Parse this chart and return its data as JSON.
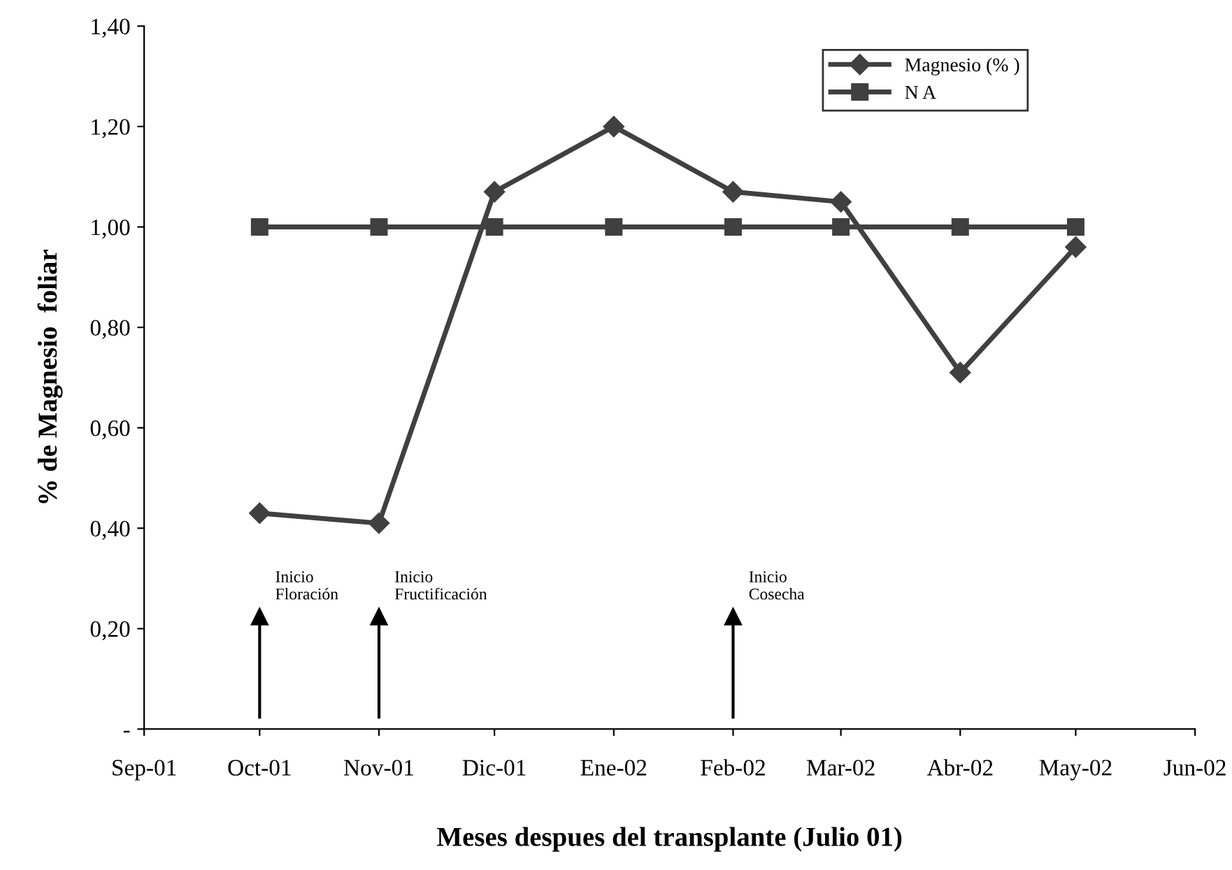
{
  "chart_data": {
    "type": "line",
    "xlabel": "Meses despues del transplante (Julio 01)",
    "ylabel": "% de Magnesio  foliar",
    "x": [
      "2001-10",
      "2001-11",
      "2001-12",
      "2002-01",
      "2002-02",
      "2002-03",
      "2002-04",
      "2002-05"
    ],
    "series": [
      {
        "name": "Magnesio (% )",
        "color": "#404040",
        "marker": "diamond",
        "values": [
          0.43,
          0.41,
          1.07,
          1.2,
          1.07,
          1.05,
          0.71,
          0.96
        ]
      },
      {
        "name": "N A",
        "color": "#404040",
        "marker": "square",
        "values": [
          1.0,
          1.0,
          1.0,
          1.0,
          1.0,
          1.0,
          1.0,
          1.0
        ]
      }
    ],
    "xlim": [
      "2001-09",
      "2002-06"
    ],
    "xticks": [
      {
        "value": "2001-09",
        "label": "Sep-01"
      },
      {
        "value": "2001-10",
        "label": "Oct-01"
      },
      {
        "value": "2001-11",
        "label": "Nov-01"
      },
      {
        "value": "2001-12",
        "label": "Dic-01"
      },
      {
        "value": "2002-01",
        "label": "Ene-02"
      },
      {
        "value": "2002-02",
        "label": "Feb-02"
      },
      {
        "value": "2002-03",
        "label": "Mar-02"
      },
      {
        "value": "2002-04",
        "label": "Abr-02"
      },
      {
        "value": "2002-05",
        "label": "May-02"
      },
      {
        "value": "2002-06",
        "label": "Jun-02"
      }
    ],
    "ylim": [
      0,
      1.4
    ],
    "yticks": [
      {
        "value": 0,
        "label": "-"
      },
      {
        "value": 0.2,
        "label": "0,20"
      },
      {
        "value": 0.4,
        "label": "0,40"
      },
      {
        "value": 0.6,
        "label": "0,60"
      },
      {
        "value": 0.8,
        "label": "0,80"
      },
      {
        "value": 1.0,
        "label": "1,00"
      },
      {
        "value": 1.2,
        "label": "1,20"
      },
      {
        "value": 1.4,
        "label": "1,40"
      }
    ],
    "ref_lines": [
      {
        "axis": "x",
        "value": "2001-10",
        "label": "Inicio\nFloración"
      },
      {
        "axis": "x",
        "value": "2001-11",
        "label": "Inicio\nFructificación"
      },
      {
        "axis": "x",
        "value": "2002-02",
        "label": "Inicio\nCosecha"
      }
    ],
    "grid": false,
    "legend": "top right",
    "line_style": "solid"
  }
}
